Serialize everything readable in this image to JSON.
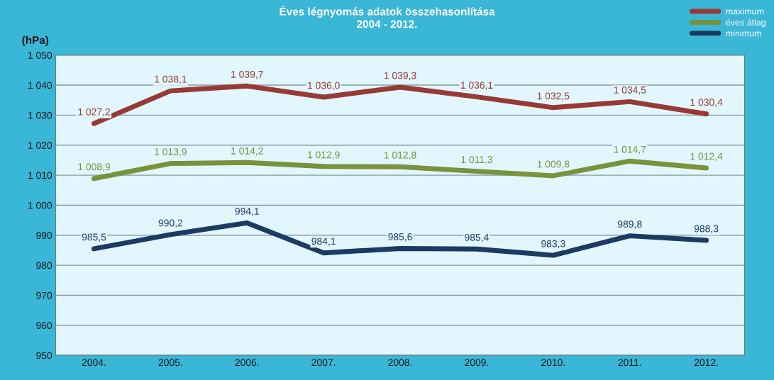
{
  "chart_data": {
    "type": "line",
    "title": "Éves légnyomás adatok összehasonlítása\n2004 - 2012.",
    "ylabel": "(hPa)",
    "categories": [
      "2004.",
      "2005.",
      "2006.",
      "2007.",
      "2008.",
      "2009.",
      "2010.",
      "2011.",
      "2012."
    ],
    "series": [
      {
        "name": "maximum",
        "color": "#973a36",
        "values": [
          1027.2,
          1038.1,
          1039.7,
          1036.0,
          1039.3,
          1036.1,
          1032.5,
          1034.5,
          1030.4
        ],
        "value_labels": [
          "1 027,2",
          "1 038,1",
          "1 039,7",
          "1 036,0",
          "1 039,3",
          "1 036,1",
          "1 032,5",
          "1 034,5",
          "1 030,4"
        ]
      },
      {
        "name": "éves átlag",
        "color": "#77933c",
        "values": [
          1008.9,
          1013.9,
          1014.2,
          1012.9,
          1012.8,
          1011.3,
          1009.8,
          1014.7,
          1012.4
        ],
        "value_labels": [
          "1 008,9",
          "1 013,9",
          "1 014,2",
          "1 012,9",
          "1 012,8",
          "1 011,3",
          "1 009,8",
          "1 014,7",
          "1 012,4"
        ]
      },
      {
        "name": "minimum",
        "color": "#1b3b63",
        "values": [
          985.5,
          990.2,
          994.1,
          984.1,
          985.6,
          985.4,
          983.3,
          989.8,
          988.3
        ],
        "value_labels": [
          "985,5",
          "990,2",
          "994,1",
          "984,1",
          "985,6",
          "985,4",
          "983,3",
          "989,8",
          "988,3"
        ]
      }
    ],
    "ylim": [
      950,
      1050
    ],
    "yticks": [
      950,
      960,
      970,
      980,
      990,
      {
        "value": 1000,
        "label": "1 000"
      },
      {
        "value": 1010,
        "label": "1 010"
      },
      {
        "value": 1020,
        "label": "1 020"
      },
      {
        "value": 1030,
        "label": "1 030"
      },
      {
        "value": 1040,
        "label": "1 040"
      },
      {
        "value": 1050,
        "label": "1 050"
      }
    ],
    "grid": "y",
    "legend": "top right",
    "marker": "none",
    "line_style": "solid"
  }
}
